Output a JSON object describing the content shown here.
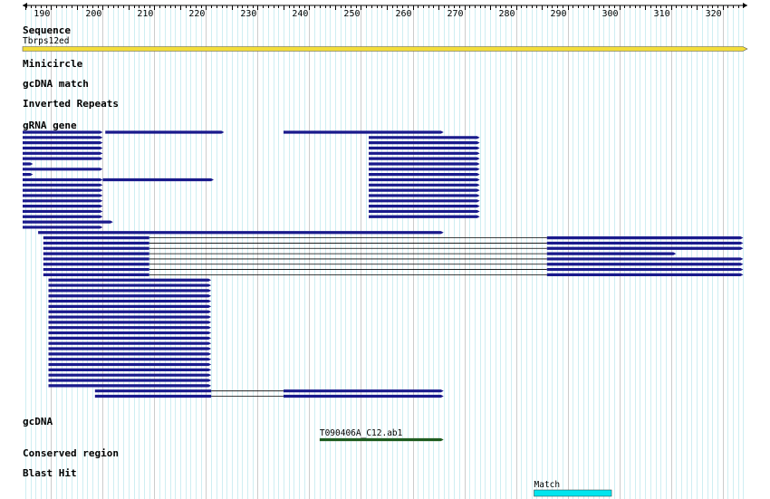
{
  "ruler": {
    "start": 184.5,
    "end": 324.8,
    "major_step": 10,
    "minor_step": 1,
    "labels": [
      "190",
      "200",
      "210",
      "220",
      "230",
      "240",
      "250",
      "260",
      "270",
      "280",
      "290",
      "300",
      "310",
      "320"
    ]
  },
  "colors": {
    "grid_major": "#cccccc",
    "grid_minor": "#cfeef2",
    "sequence_fill": "#f2dd3a",
    "grna_fill": "#1a1a8c",
    "gcdna_fill": "#1f5c1f",
    "blast_fill": "#00e5ee",
    "connector": "#000000"
  },
  "tracks": [
    {
      "id": "sequence",
      "label": "Sequence"
    },
    {
      "id": "minicircle",
      "label": "Minicircle"
    },
    {
      "id": "gcdna-match",
      "label": "gcDNA match"
    },
    {
      "id": "inverted-repeats",
      "label": "Inverted Repeats"
    },
    {
      "id": "grna-gene",
      "label": "gRNA gene"
    },
    {
      "id": "gcdna",
      "label": "gcDNA"
    },
    {
      "id": "conserved-region",
      "label": "Conserved region"
    },
    {
      "id": "blast-hit",
      "label": "Blast Hit"
    }
  ],
  "sequence_feature": {
    "name": "Tbrps12ed",
    "start": 184.5,
    "end": 324.8,
    "strand": "+"
  },
  "grna_rows": [
    [
      [
        184.5,
        200
      ]
    ],
    [
      [
        184.5,
        200
      ]
    ],
    [
      [
        184.5,
        200
      ]
    ],
    [
      [
        184.5,
        200
      ]
    ],
    [
      [
        184.5,
        200
      ]
    ],
    [
      [
        184.5,
        200
      ]
    ],
    [
      [
        184.5,
        186.5
      ]
    ],
    [
      [
        184.5,
        200
      ]
    ],
    [
      [
        184.5,
        186.5
      ]
    ],
    [
      [
        184.5,
        200
      ]
    ],
    [
      [
        184.5,
        200
      ]
    ],
    [
      [
        184.5,
        200
      ]
    ],
    [
      [
        184.5,
        200
      ]
    ],
    [
      [
        184.5,
        200
      ]
    ],
    [
      [
        184.5,
        200
      ]
    ],
    [
      [
        184.5,
        200
      ]
    ],
    [
      [
        184.5,
        200
      ]
    ],
    [
      [
        184.5,
        202
      ]
    ],
    [
      [
        184.5,
        200
      ]
    ],
    [
      [
        187.5,
        266
      ]
    ],
    [
      [
        188.5,
        209
      ],
      [
        286,
        324
      ]
    ],
    [
      [
        188.5,
        209
      ],
      [
        286,
        324
      ]
    ],
    [
      [
        188.5,
        209
      ],
      [
        286,
        324
      ]
    ],
    [
      [
        188.5,
        209
      ],
      [
        286,
        311
      ]
    ],
    [
      [
        188.5,
        209
      ],
      [
        286,
        324
      ]
    ],
    [
      [
        188.5,
        209
      ],
      [
        286,
        324
      ]
    ],
    [
      [
        188.5,
        209
      ],
      [
        286,
        324
      ]
    ],
    [
      [
        188.5,
        209
      ],
      [
        286,
        324
      ]
    ],
    [
      [
        189.5,
        221
      ]
    ],
    [
      [
        189.5,
        221
      ]
    ],
    [
      [
        189.5,
        221
      ]
    ],
    [
      [
        189.5,
        221
      ]
    ],
    [
      [
        189.5,
        221
      ]
    ],
    [
      [
        189.5,
        221
      ]
    ],
    [
      [
        189.5,
        221
      ]
    ],
    [
      [
        189.5,
        221
      ]
    ],
    [
      [
        189.5,
        221
      ]
    ],
    [
      [
        189.5,
        221
      ]
    ],
    [
      [
        189.5,
        221
      ]
    ],
    [
      [
        189.5,
        221
      ]
    ],
    [
      [
        189.5,
        221
      ]
    ],
    [
      [
        189.5,
        221
      ]
    ],
    [
      [
        189.5,
        221
      ]
    ],
    [
      [
        189.5,
        221
      ]
    ],
    [
      [
        189.5,
        221
      ]
    ],
    [
      [
        189.5,
        221
      ]
    ],
    [
      [
        189.5,
        221
      ]
    ],
    [
      [
        189.5,
        221
      ]
    ],
    [
      [
        189.5,
        221
      ]
    ],
    [
      [
        198.5,
        221
      ],
      [
        235,
        266
      ]
    ],
    [
      [
        198.5,
        221
      ],
      [
        235,
        266
      ]
    ]
  ],
  "grna_extra": [
    {
      "start": 200.5,
      "end": 223.5,
      "row": 0
    },
    {
      "start": 235,
      "end": 266,
      "row": 0
    },
    {
      "start": 251.5,
      "end": 273,
      "row": 1
    },
    {
      "start": 251.5,
      "end": 273,
      "row": 2
    },
    {
      "start": 251.5,
      "end": 273,
      "row": 3
    },
    {
      "start": 251.5,
      "end": 273,
      "row": 4
    },
    {
      "start": 251.5,
      "end": 273,
      "row": 5
    },
    {
      "start": 251.5,
      "end": 273,
      "row": 6
    },
    {
      "start": 251.5,
      "end": 273,
      "row": 7
    },
    {
      "start": 251.5,
      "end": 273,
      "row": 8
    },
    {
      "start": 251.5,
      "end": 273,
      "row": 9
    },
    {
      "start": 251.5,
      "end": 273,
      "row": 10
    },
    {
      "start": 251.5,
      "end": 273,
      "row": 11
    },
    {
      "start": 251.5,
      "end": 273,
      "row": 12
    },
    {
      "start": 251.5,
      "end": 273,
      "row": 13
    },
    {
      "start": 251.5,
      "end": 273,
      "row": 14
    },
    {
      "start": 251.5,
      "end": 273,
      "row": 15
    },
    {
      "start": 251.5,
      "end": 273,
      "row": 16
    },
    {
      "start": 200,
      "end": 221.5,
      "row": 9
    }
  ],
  "gcdna_feature": {
    "name": "T090406A_C12.ab1",
    "start": 242,
    "end": 266
  },
  "blast_feature": {
    "name": "Match",
    "start": 283.5,
    "end": 298.5
  }
}
